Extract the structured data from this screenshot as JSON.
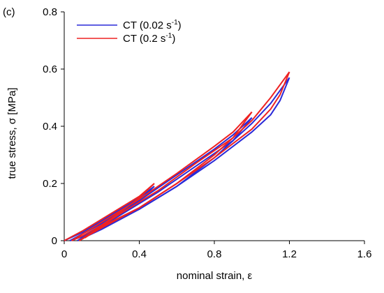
{
  "chart_data": {
    "type": "line",
    "panel_label": "(c)",
    "xlabel": "nominal strain, ε",
    "ylabel": "true stress, σ [MPa]",
    "xlim": [
      0,
      1.6
    ],
    "ylim": [
      0,
      0.8
    ],
    "xticks": [
      "0",
      "0.4",
      "0.8",
      "1.2",
      "1.6"
    ],
    "yticks": [
      "0",
      "0.2",
      "0.4",
      "0.6",
      "0.8"
    ],
    "xtick_values": [
      0,
      0.4,
      0.8,
      1.2,
      1.6
    ],
    "ytick_values": [
      0,
      0.2,
      0.4,
      0.6,
      0.8
    ],
    "legend": {
      "placement": "top-left"
    },
    "series": [
      {
        "name": "CT (0.02 s",
        "name_sup": "-1",
        "name_end": ")",
        "color": "#2a2ad8",
        "cycles": [
          {
            "load": [
              [
                0,
                0
              ],
              [
                0.1,
                0.03
              ],
              [
                0.2,
                0.07
              ],
              [
                0.3,
                0.11
              ],
              [
                0.4,
                0.15
              ],
              [
                0.48,
                0.19
              ]
            ],
            "unload": [
              [
                0.48,
                0.19
              ],
              [
                0.4,
                0.14
              ],
              [
                0.3,
                0.09
              ],
              [
                0.2,
                0.05
              ],
              [
                0.1,
                0.015
              ],
              [
                0.03,
                0
              ]
            ]
          },
          {
            "load": [
              [
                0.03,
                0
              ],
              [
                0.2,
                0.06
              ],
              [
                0.4,
                0.14
              ],
              [
                0.6,
                0.23
              ],
              [
                0.8,
                0.32
              ],
              [
                0.9,
                0.37
              ],
              [
                1.0,
                0.43
              ]
            ],
            "unload": [
              [
                1.0,
                0.43
              ],
              [
                0.9,
                0.35
              ],
              [
                0.8,
                0.29
              ],
              [
                0.6,
                0.19
              ],
              [
                0.4,
                0.11
              ],
              [
                0.2,
                0.04
              ],
              [
                0.07,
                0
              ]
            ]
          },
          {
            "load": [
              [
                0.07,
                0
              ],
              [
                0.3,
                0.09
              ],
              [
                0.5,
                0.17
              ],
              [
                0.7,
                0.26
              ],
              [
                0.9,
                0.35
              ],
              [
                1.0,
                0.41
              ],
              [
                1.1,
                0.48
              ],
              [
                1.2,
                0.57
              ]
            ],
            "unload": [
              [
                1.2,
                0.57
              ],
              [
                1.15,
                0.49
              ],
              [
                1.1,
                0.44
              ],
              [
                1.0,
                0.38
              ],
              [
                0.8,
                0.28
              ],
              [
                0.6,
                0.19
              ],
              [
                0.4,
                0.11
              ],
              [
                0.2,
                0.045
              ],
              [
                0.1,
                0.01
              ]
            ]
          }
        ]
      },
      {
        "name": "CT (0.2 s",
        "name_sup": "-1",
        "name_end": ")",
        "color": "#ee2222",
        "cycles": [
          {
            "load": [
              [
                0,
                0
              ],
              [
                0.1,
                0.035
              ],
              [
                0.2,
                0.075
              ],
              [
                0.3,
                0.115
              ],
              [
                0.4,
                0.155
              ],
              [
                0.48,
                0.2
              ]
            ],
            "unload": [
              [
                0.48,
                0.2
              ],
              [
                0.4,
                0.15
              ],
              [
                0.3,
                0.1
              ],
              [
                0.2,
                0.055
              ],
              [
                0.1,
                0.018
              ],
              [
                0.04,
                0
              ]
            ]
          },
          {
            "load": [
              [
                0.04,
                0
              ],
              [
                0.2,
                0.065
              ],
              [
                0.4,
                0.145
              ],
              [
                0.6,
                0.235
              ],
              [
                0.8,
                0.33
              ],
              [
                0.9,
                0.38
              ],
              [
                1.0,
                0.45
              ]
            ],
            "unload": [
              [
                1.0,
                0.45
              ],
              [
                0.9,
                0.36
              ],
              [
                0.8,
                0.3
              ],
              [
                0.6,
                0.2
              ],
              [
                0.4,
                0.115
              ],
              [
                0.2,
                0.045
              ],
              [
                0.08,
                0
              ]
            ]
          },
          {
            "load": [
              [
                0.08,
                0
              ],
              [
                0.3,
                0.095
              ],
              [
                0.5,
                0.175
              ],
              [
                0.7,
                0.27
              ],
              [
                0.9,
                0.36
              ],
              [
                1.0,
                0.42
              ],
              [
                1.1,
                0.5
              ],
              [
                1.2,
                0.59
              ]
            ],
            "unload": [
              [
                1.2,
                0.59
              ],
              [
                1.15,
                0.51
              ],
              [
                1.1,
                0.46
              ],
              [
                1.0,
                0.39
              ],
              [
                0.8,
                0.29
              ],
              [
                0.6,
                0.2
              ],
              [
                0.4,
                0.115
              ],
              [
                0.2,
                0.05
              ],
              [
                0.11,
                0.01
              ]
            ]
          }
        ]
      }
    ]
  }
}
